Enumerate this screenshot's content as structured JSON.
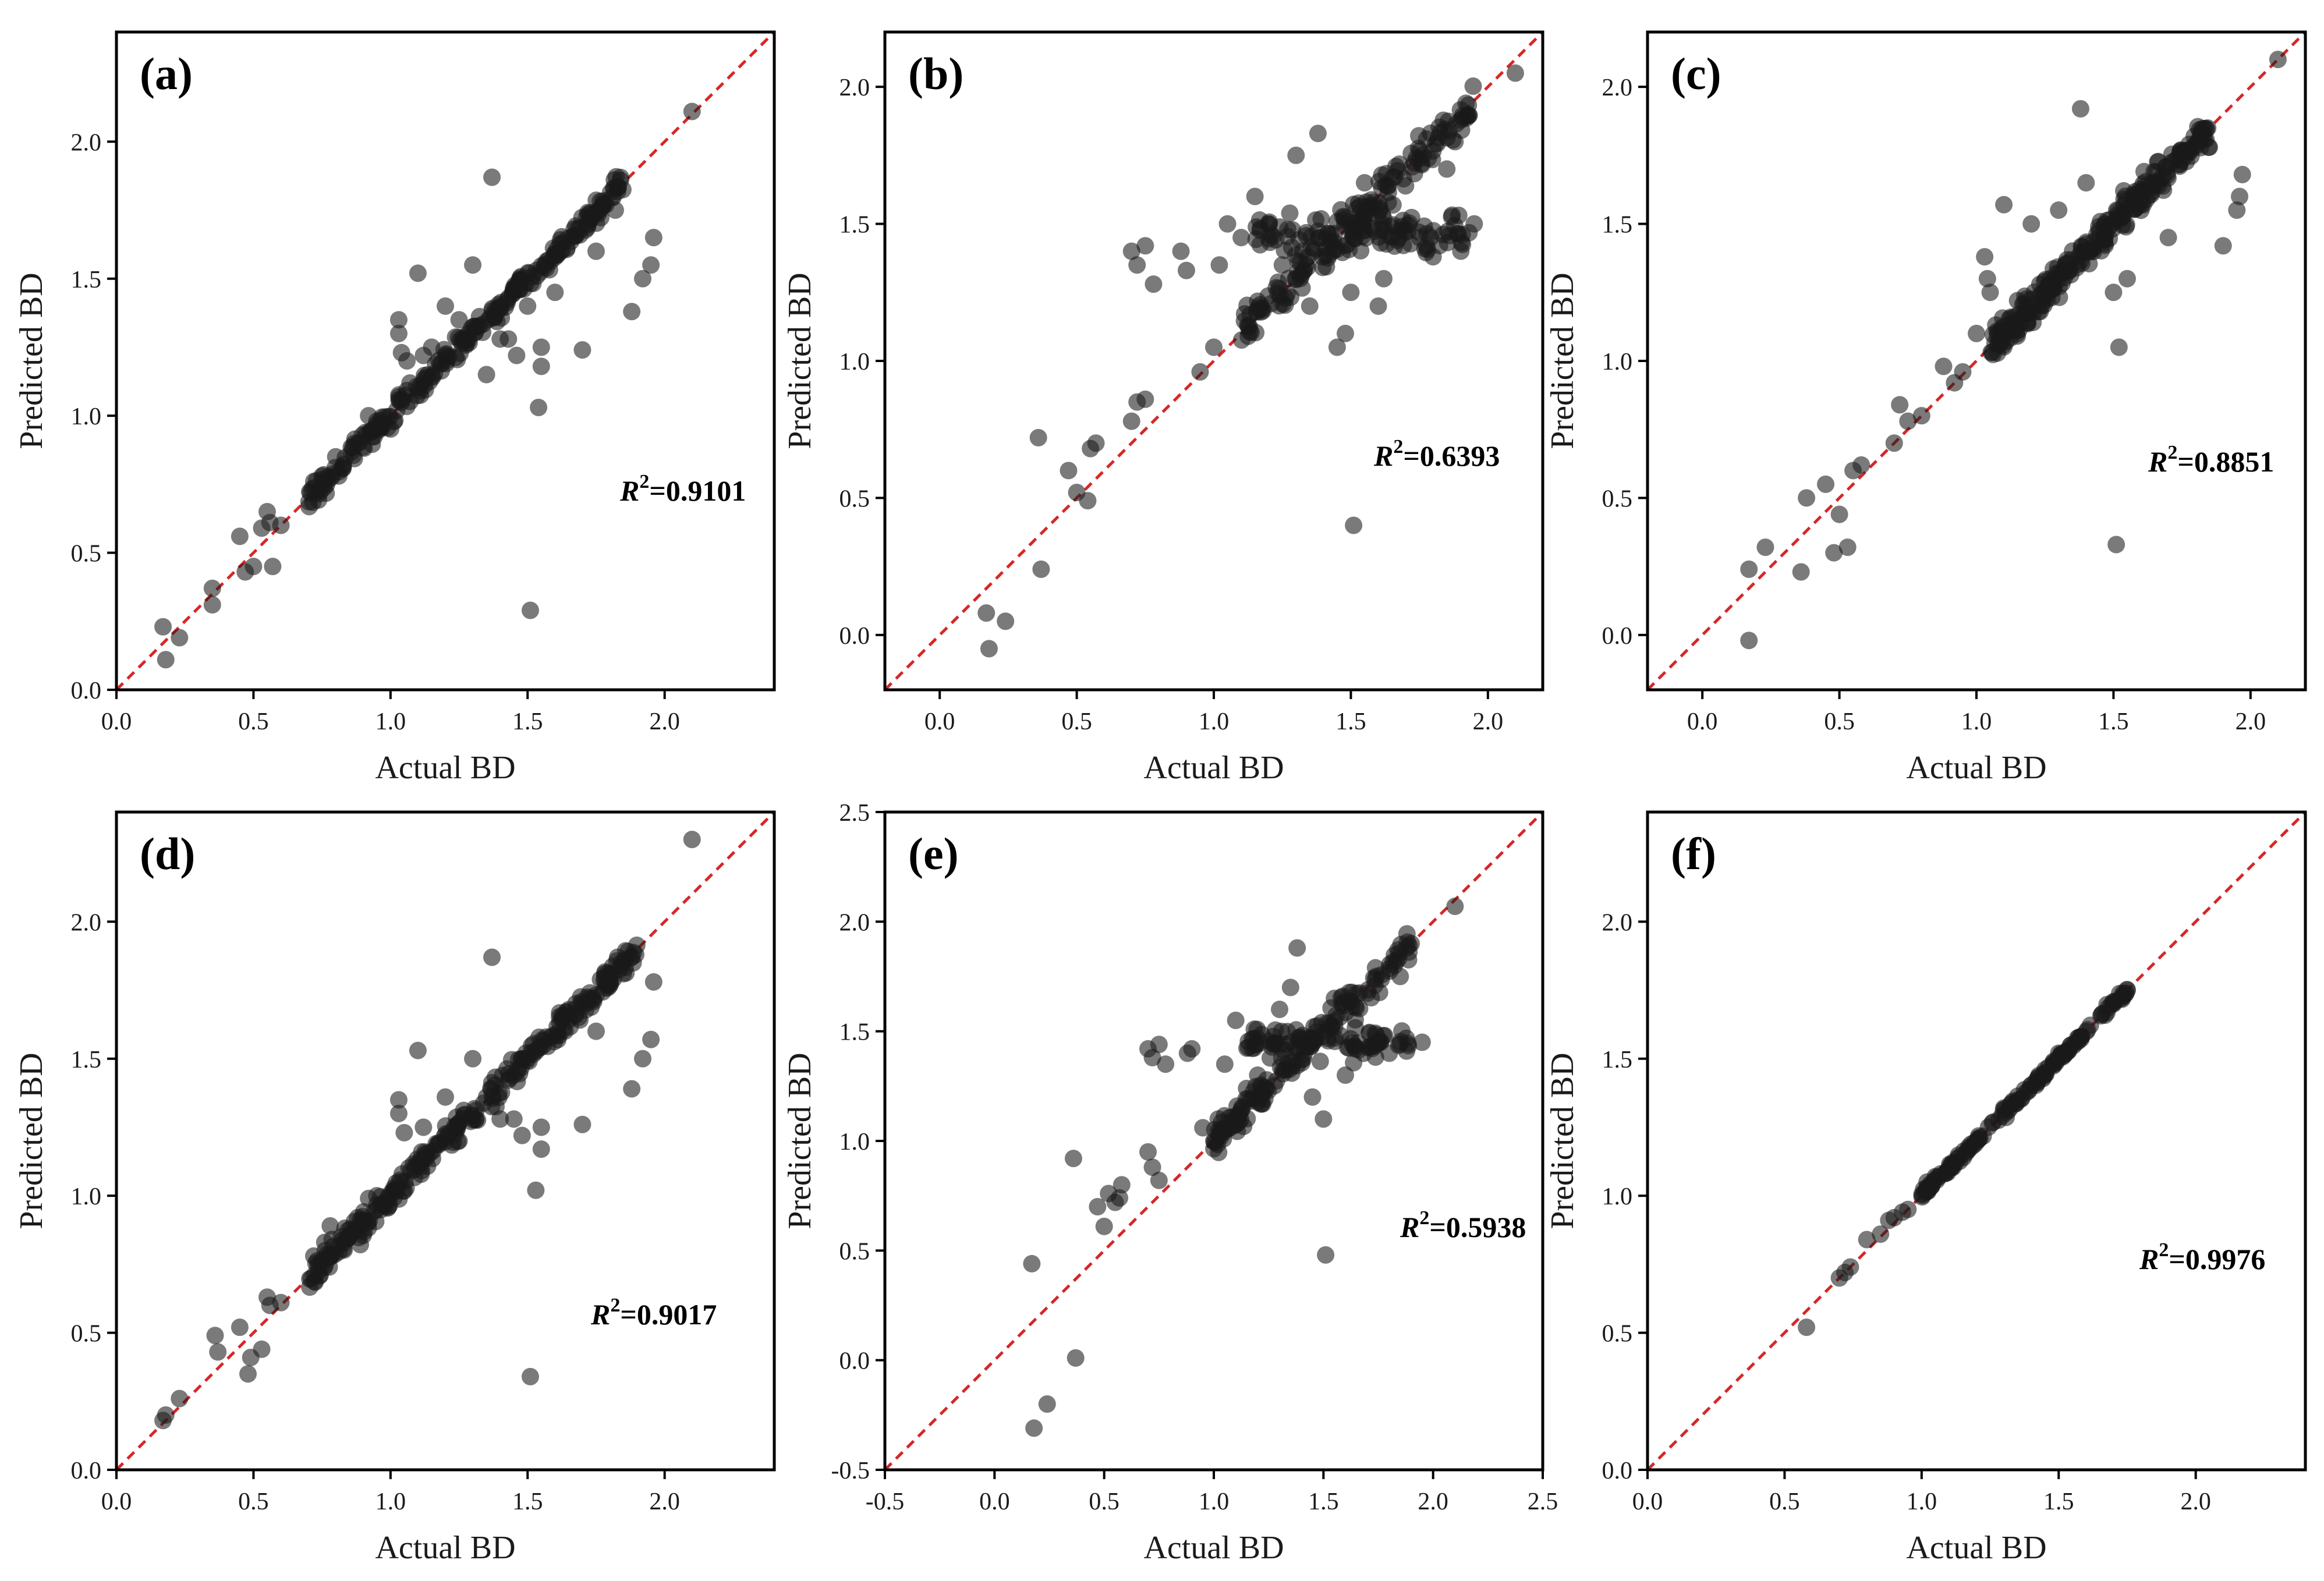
{
  "figure": {
    "marker_color": "#1a1a1a",
    "diagonal_color": "#d62728",
    "background": "#ffffff"
  },
  "chart_data": [
    {
      "id": "a",
      "type": "scatter",
      "panel_label": "(a)",
      "xlabel": "Actual BD",
      "ylabel": "Predicted BD",
      "xlim": [
        0.0,
        2.4
      ],
      "ylim": [
        0.0,
        2.4
      ],
      "xticks": [
        0.0,
        0.5,
        1.0,
        1.5,
        2.0
      ],
      "yticks": [
        0.0,
        0.5,
        1.0,
        1.5,
        2.0
      ],
      "xtick_labels": [
        "0.0",
        "0.5",
        "1.0",
        "1.5",
        "2.0"
      ],
      "ytick_labels": [
        "0.0",
        "0.5",
        "1.0",
        "1.5",
        "2.0"
      ],
      "annotation_prefix": "R",
      "annotation_exponent": "2",
      "annotation_value": "=0.9101",
      "cluster": {
        "x_min": 0.7,
        "x_max": 1.85,
        "count": 260,
        "spread": 0.03
      },
      "points": [
        [
          0.17,
          0.23
        ],
        [
          0.18,
          0.11
        ],
        [
          0.23,
          0.19
        ],
        [
          0.35,
          0.37
        ],
        [
          0.35,
          0.31
        ],
        [
          0.45,
          0.56
        ],
        [
          0.47,
          0.43
        ],
        [
          0.5,
          0.45
        ],
        [
          0.53,
          0.59
        ],
        [
          0.55,
          0.65
        ],
        [
          0.56,
          0.61
        ],
        [
          0.57,
          0.45
        ],
        [
          0.6,
          0.6
        ],
        [
          0.72,
          0.76
        ],
        [
          0.76,
          0.74
        ],
        [
          0.8,
          0.85
        ],
        [
          0.88,
          0.9
        ],
        [
          0.92,
          1.0
        ],
        [
          0.95,
          0.98
        ],
        [
          1.03,
          1.35
        ],
        [
          1.03,
          1.3
        ],
        [
          1.04,
          1.23
        ],
        [
          1.06,
          1.2
        ],
        [
          1.1,
          1.52
        ],
        [
          1.12,
          1.22
        ],
        [
          1.15,
          1.25
        ],
        [
          1.2,
          1.4
        ],
        [
          1.25,
          1.35
        ],
        [
          1.3,
          1.55
        ],
        [
          1.35,
          1.15
        ],
        [
          1.37,
          1.87
        ],
        [
          1.4,
          1.28
        ],
        [
          1.43,
          1.28
        ],
        [
          1.46,
          1.22
        ],
        [
          1.5,
          1.4
        ],
        [
          1.51,
          0.29
        ],
        [
          1.54,
          1.03
        ],
        [
          1.55,
          1.25
        ],
        [
          1.55,
          1.18
        ],
        [
          1.6,
          1.45
        ],
        [
          1.7,
          1.24
        ],
        [
          1.75,
          1.6
        ],
        [
          1.82,
          1.75
        ],
        [
          1.88,
          1.38
        ],
        [
          1.92,
          1.5
        ],
        [
          1.95,
          1.55
        ],
        [
          1.96,
          1.65
        ],
        [
          2.1,
          2.11
        ]
      ]
    },
    {
      "id": "b",
      "type": "scatter",
      "panel_label": "(b)",
      "xlabel": "Actual BD",
      "ylabel": "Predicted BD",
      "xlim": [
        -0.2,
        2.2
      ],
      "ylim": [
        -0.2,
        2.2
      ],
      "xticks": [
        0.0,
        0.5,
        1.0,
        1.5,
        2.0
      ],
      "yticks": [
        0.0,
        0.5,
        1.0,
        1.5,
        2.0
      ],
      "xtick_labels": [
        "0.0",
        "0.5",
        "1.0",
        "1.5",
        "2.0"
      ],
      "ytick_labels": [
        "0.0",
        "0.5",
        "1.0",
        "1.5",
        "2.0"
      ],
      "annotation_prefix": "R",
      "annotation_exponent": "2",
      "annotation_value": "=0.6393",
      "cluster": {
        "x_min": 1.1,
        "x_max": 1.95,
        "count": 260,
        "spread": 0.05,
        "band_y": 1.46,
        "band_spread": 0.06
      },
      "points": [
        [
          0.17,
          0.08
        ],
        [
          0.18,
          -0.05
        ],
        [
          0.24,
          0.05
        ],
        [
          0.36,
          0.72
        ],
        [
          0.37,
          0.24
        ],
        [
          0.47,
          0.6
        ],
        [
          0.5,
          0.52
        ],
        [
          0.54,
          0.49
        ],
        [
          0.55,
          0.68
        ],
        [
          0.57,
          0.7
        ],
        [
          0.7,
          0.78
        ],
        [
          0.72,
          0.85
        ],
        [
          0.75,
          0.86
        ],
        [
          0.7,
          1.4
        ],
        [
          0.72,
          1.35
        ],
        [
          0.75,
          1.42
        ],
        [
          0.78,
          1.28
        ],
        [
          0.88,
          1.4
        ],
        [
          0.9,
          1.33
        ],
        [
          0.95,
          0.96
        ],
        [
          1.0,
          1.05
        ],
        [
          1.02,
          1.35
        ],
        [
          1.05,
          1.5
        ],
        [
          1.1,
          1.45
        ],
        [
          1.15,
          1.6
        ],
        [
          1.2,
          1.5
        ],
        [
          1.25,
          1.35
        ],
        [
          1.3,
          1.75
        ],
        [
          1.35,
          1.2
        ],
        [
          1.38,
          1.83
        ],
        [
          1.45,
          1.05
        ],
        [
          1.48,
          1.1
        ],
        [
          1.5,
          1.25
        ],
        [
          1.51,
          0.4
        ],
        [
          1.55,
          1.65
        ],
        [
          1.6,
          1.2
        ],
        [
          1.62,
          1.3
        ],
        [
          1.75,
          1.45
        ],
        [
          1.8,
          1.38
        ],
        [
          1.85,
          1.7
        ],
        [
          1.88,
          1.8
        ],
        [
          1.92,
          1.94
        ],
        [
          1.95,
          1.5
        ],
        [
          2.1,
          2.05
        ]
      ]
    },
    {
      "id": "c",
      "type": "scatter",
      "panel_label": "(c)",
      "xlabel": "Actual BD",
      "ylabel": "Predicted BD",
      "xlim": [
        -0.2,
        2.2
      ],
      "ylim": [
        -0.2,
        2.2
      ],
      "xticks": [
        0.0,
        0.5,
        1.0,
        1.5,
        2.0
      ],
      "yticks": [
        0.0,
        0.5,
        1.0,
        1.5,
        2.0
      ],
      "xtick_labels": [
        "0.0",
        "0.5",
        "1.0",
        "1.5",
        "2.0"
      ],
      "ytick_labels": [
        "0.0",
        "0.5",
        "1.0",
        "1.5",
        "2.0"
      ],
      "annotation_prefix": "R",
      "annotation_exponent": "2",
      "annotation_value": "=0.8851",
      "cluster": {
        "x_min": 1.05,
        "x_max": 1.85,
        "count": 260,
        "spread": 0.04
      },
      "points": [
        [
          0.17,
          -0.02
        ],
        [
          0.17,
          0.24
        ],
        [
          0.23,
          0.32
        ],
        [
          0.36,
          0.23
        ],
        [
          0.38,
          0.5
        ],
        [
          0.45,
          0.55
        ],
        [
          0.48,
          0.3
        ],
        [
          0.5,
          0.44
        ],
        [
          0.53,
          0.32
        ],
        [
          0.55,
          0.6
        ],
        [
          0.58,
          0.62
        ],
        [
          0.7,
          0.7
        ],
        [
          0.72,
          0.84
        ],
        [
          0.75,
          0.78
        ],
        [
          0.8,
          0.8
        ],
        [
          0.88,
          0.98
        ],
        [
          0.92,
          0.92
        ],
        [
          0.95,
          0.96
        ],
        [
          1.0,
          1.1
        ],
        [
          1.03,
          1.38
        ],
        [
          1.04,
          1.3
        ],
        [
          1.05,
          1.25
        ],
        [
          1.1,
          1.57
        ],
        [
          1.15,
          1.22
        ],
        [
          1.2,
          1.5
        ],
        [
          1.3,
          1.55
        ],
        [
          1.38,
          1.92
        ],
        [
          1.4,
          1.65
        ],
        [
          1.5,
          1.25
        ],
        [
          1.51,
          0.33
        ],
        [
          1.52,
          1.05
        ],
        [
          1.55,
          1.3
        ],
        [
          1.7,
          1.45
        ],
        [
          1.9,
          1.42
        ],
        [
          1.95,
          1.55
        ],
        [
          1.96,
          1.6
        ],
        [
          1.97,
          1.68
        ],
        [
          2.1,
          2.1
        ]
      ]
    },
    {
      "id": "d",
      "type": "scatter",
      "panel_label": "(d)",
      "xlabel": "Actual BD",
      "ylabel": "Predicted BD",
      "xlim": [
        0.0,
        2.4
      ],
      "ylim": [
        0.0,
        2.4
      ],
      "xticks": [
        0.0,
        0.5,
        1.0,
        1.5,
        2.0
      ],
      "yticks": [
        0.0,
        0.5,
        1.0,
        1.5,
        2.0
      ],
      "xtick_labels": [
        "0.0",
        "0.5",
        "1.0",
        "1.5",
        "2.0"
      ],
      "ytick_labels": [
        "0.0",
        "0.5",
        "1.0",
        "1.5",
        "2.0"
      ],
      "annotation_prefix": "R",
      "annotation_exponent": "2",
      "annotation_value": "=0.9017",
      "cluster": {
        "x_min": 0.7,
        "x_max": 1.9,
        "count": 280,
        "spread": 0.035
      },
      "points": [
        [
          0.17,
          0.18
        ],
        [
          0.18,
          0.2
        ],
        [
          0.23,
          0.26
        ],
        [
          0.36,
          0.49
        ],
        [
          0.37,
          0.43
        ],
        [
          0.45,
          0.52
        ],
        [
          0.48,
          0.35
        ],
        [
          0.49,
          0.41
        ],
        [
          0.53,
          0.44
        ],
        [
          0.55,
          0.63
        ],
        [
          0.56,
          0.6
        ],
        [
          0.6,
          0.61
        ],
        [
          0.72,
          0.78
        ],
        [
          0.76,
          0.83
        ],
        [
          0.78,
          0.89
        ],
        [
          0.88,
          0.92
        ],
        [
          0.92,
          0.99
        ],
        [
          0.95,
          1.0
        ],
        [
          1.03,
          1.35
        ],
        [
          1.03,
          1.3
        ],
        [
          1.05,
          1.23
        ],
        [
          1.1,
          1.53
        ],
        [
          1.12,
          1.25
        ],
        [
          1.2,
          1.36
        ],
        [
          1.25,
          1.2
        ],
        [
          1.3,
          1.5
        ],
        [
          1.37,
          1.87
        ],
        [
          1.4,
          1.28
        ],
        [
          1.45,
          1.28
        ],
        [
          1.48,
          1.22
        ],
        [
          1.51,
          0.34
        ],
        [
          1.53,
          1.02
        ],
        [
          1.55,
          1.17
        ],
        [
          1.55,
          1.25
        ],
        [
          1.7,
          1.26
        ],
        [
          1.75,
          1.6
        ],
        [
          1.88,
          1.39
        ],
        [
          1.92,
          1.5
        ],
        [
          1.95,
          1.57
        ],
        [
          1.96,
          1.78
        ],
        [
          2.1,
          2.3
        ]
      ]
    },
    {
      "id": "e",
      "type": "scatter",
      "panel_label": "(e)",
      "xlabel": "Actual BD",
      "ylabel": "Predicted BD",
      "xlim": [
        -0.5,
        2.5
      ],
      "ylim": [
        -0.5,
        2.5
      ],
      "xticks": [
        -0.5,
        0.0,
        0.5,
        1.0,
        1.5,
        2.0,
        2.5
      ],
      "yticks": [
        -0.5,
        0.0,
        0.5,
        1.0,
        1.5,
        2.0,
        2.5
      ],
      "xtick_labels": [
        "-0.5",
        "0.0",
        "0.5",
        "1.0",
        "1.5",
        "2.0",
        "2.5"
      ],
      "ytick_labels": [
        "-0.5",
        "0.0",
        "0.5",
        "1.0",
        "1.5",
        "2.0",
        "2.5"
      ],
      "annotation_prefix": "R",
      "annotation_exponent": "2",
      "annotation_value": "=0.5938",
      "cluster": {
        "x_min": 1.0,
        "x_max": 1.9,
        "count": 240,
        "spread": 0.05,
        "band_y": 1.45,
        "band_spread": 0.06
      },
      "points": [
        [
          0.17,
          0.44
        ],
        [
          0.18,
          -0.31
        ],
        [
          0.24,
          -0.2
        ],
        [
          0.36,
          0.92
        ],
        [
          0.37,
          0.01
        ],
        [
          0.47,
          0.7
        ],
        [
          0.5,
          0.61
        ],
        [
          0.52,
          0.76
        ],
        [
          0.55,
          0.72
        ],
        [
          0.57,
          0.74
        ],
        [
          0.58,
          0.8
        ],
        [
          0.7,
          0.95
        ],
        [
          0.72,
          0.88
        ],
        [
          0.75,
          0.82
        ],
        [
          0.7,
          1.42
        ],
        [
          0.72,
          1.38
        ],
        [
          0.75,
          1.44
        ],
        [
          0.78,
          1.35
        ],
        [
          0.88,
          1.4
        ],
        [
          0.9,
          1.42
        ],
        [
          0.95,
          1.06
        ],
        [
          1.0,
          1.0
        ],
        [
          1.02,
          1.1
        ],
        [
          1.05,
          1.35
        ],
        [
          1.1,
          1.55
        ],
        [
          1.2,
          1.3
        ],
        [
          1.3,
          1.6
        ],
        [
          1.35,
          1.7
        ],
        [
          1.38,
          1.88
        ],
        [
          1.45,
          1.2
        ],
        [
          1.5,
          1.1
        ],
        [
          1.51,
          0.48
        ],
        [
          1.55,
          1.65
        ],
        [
          1.6,
          1.3
        ],
        [
          1.75,
          1.45
        ],
        [
          1.8,
          1.4
        ],
        [
          1.85,
          1.75
        ],
        [
          1.9,
          1.9
        ],
        [
          1.95,
          1.45
        ],
        [
          2.1,
          2.07
        ]
      ]
    },
    {
      "id": "f",
      "type": "scatter",
      "panel_label": "(f)",
      "xlabel": "Actual BD",
      "ylabel": "Predicted BD",
      "xlim": [
        0.0,
        2.4
      ],
      "ylim": [
        0.0,
        2.4
      ],
      "xticks": [
        0.0,
        0.5,
        1.0,
        1.5,
        2.0
      ],
      "yticks": [
        0.0,
        0.5,
        1.0,
        1.5,
        2.0
      ],
      "xtick_labels": [
        "0.0",
        "0.5",
        "1.0",
        "1.5",
        "2.0"
      ],
      "ytick_labels": [
        "0.0",
        "0.5",
        "1.0",
        "1.5",
        "2.0"
      ],
      "annotation_prefix": "R",
      "annotation_exponent": "2",
      "annotation_value": "=0.9976",
      "cluster": {
        "x_min": 1.0,
        "x_max": 1.75,
        "count": 150,
        "spread": 0.01
      },
      "points": [
        [
          0.58,
          0.52
        ],
        [
          0.7,
          0.7
        ],
        [
          0.72,
          0.72
        ],
        [
          0.74,
          0.74
        ],
        [
          0.8,
          0.84
        ],
        [
          0.85,
          0.86
        ],
        [
          0.88,
          0.91
        ],
        [
          0.9,
          0.92
        ],
        [
          0.93,
          0.94
        ],
        [
          0.95,
          0.95
        ],
        [
          1.02,
          1.05
        ],
        [
          1.05,
          1.07
        ],
        [
          1.07,
          1.08
        ],
        [
          1.1,
          1.1
        ],
        [
          1.3,
          1.32
        ],
        [
          1.45,
          1.46
        ],
        [
          1.5,
          1.52
        ],
        [
          1.7,
          1.7
        ],
        [
          1.75,
          1.75
        ]
      ]
    }
  ]
}
